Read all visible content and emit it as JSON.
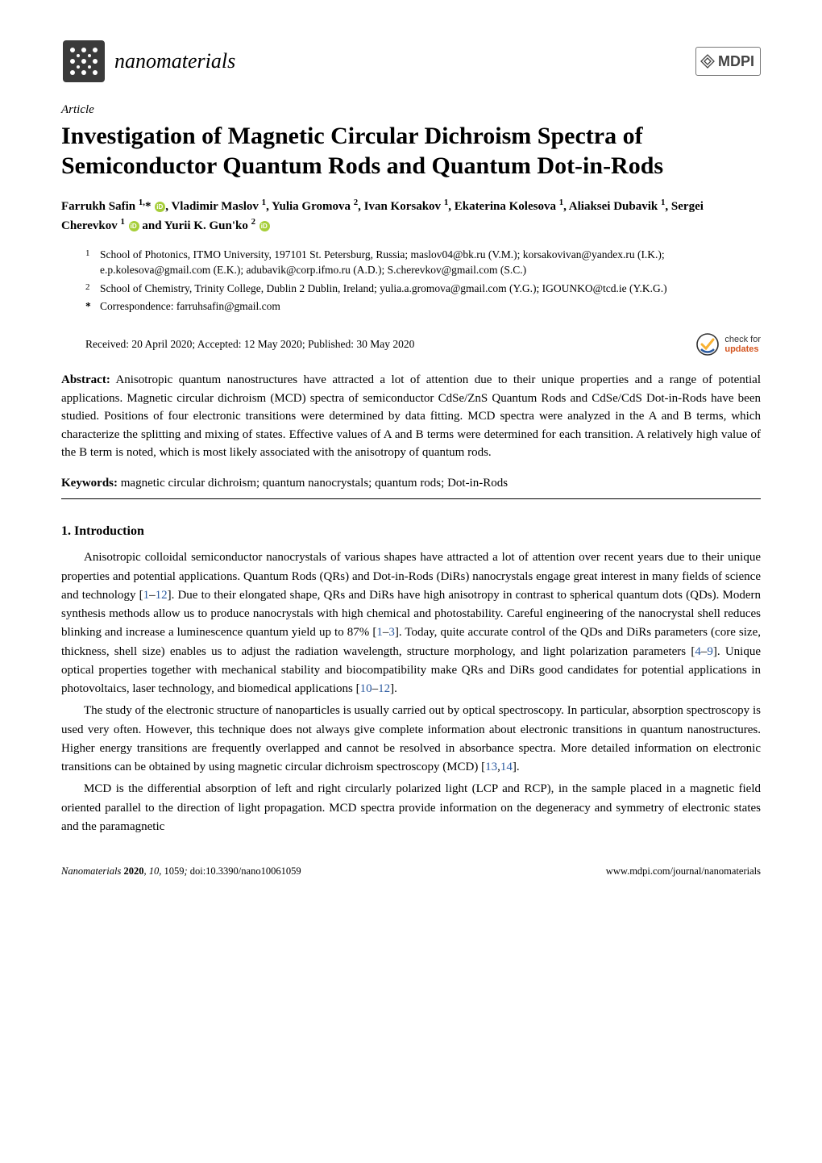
{
  "journal": {
    "name": "nanomaterials",
    "publisher": "MDPI",
    "logo_bg": "#3a3a3a",
    "logo_pattern": "#ffffff"
  },
  "article": {
    "type_label": "Article",
    "title": "Investigation of Magnetic Circular Dichroism Spectra of Semiconductor Quantum Rods and Quantum Dot-in-Rods",
    "authors_html": "Farrukh Safin <sup>1,</sup>* <span class='orcid-icon'></span>, Vladimir Maslov <sup>1</sup>, Yulia Gromova <sup>2</sup>, Ivan Korsakov <sup>1</sup>, Ekaterina Kolesova <sup>1</sup>, Aliaksei Dubavik <sup>1</sup>, Sergei Cherevkov <sup>1</sup> <span class='orcid-icon'></span> and Yurii K. Gun'ko <sup>2</sup> <span class='orcid-icon'></span>",
    "affiliations": [
      {
        "num": "1",
        "text": "School of Photonics, ITMO University, 197101 St. Petersburg, Russia; maslov04@bk.ru (V.M.); korsakovivan@yandex.ru (I.K.); e.p.kolesova@gmail.com (E.K.); adubavik@corp.ifmo.ru (A.D.); S.cherevkov@gmail.com (S.C.)"
      },
      {
        "num": "2",
        "text": "School of Chemistry, Trinity College, Dublin 2 Dublin, Ireland; yulia.a.gromova@gmail.com (Y.G.); IGOUNKO@tcd.ie (Y.K.G.)"
      }
    ],
    "correspondence_label": "Correspondence:",
    "correspondence": "farruhsafin@gmail.com",
    "dates": "Received: 20 April 2020; Accepted: 12 May 2020; Published: 30 May 2020",
    "updates_check": "check for",
    "updates_word": "updates",
    "abstract_label": "Abstract:",
    "abstract": "Anisotropic quantum nanostructures have attracted a lot of attention due to their unique properties and a range of potential applications. Magnetic circular dichroism (MCD) spectra of semiconductor CdSe/ZnS Quantum Rods and CdSe/CdS Dot-in-Rods have been studied. Positions of four electronic transitions were determined by data fitting. MCD spectra were analyzed in the A and B terms, which characterize the splitting and mixing of states. Effective values of A and B terms were determined for each transition. A relatively high value of the B term is noted, which is most likely associated with the anisotropy of quantum rods.",
    "keywords_label": "Keywords:",
    "keywords": "magnetic circular dichroism; quantum nanocrystals; quantum rods; Dot-in-Rods"
  },
  "section": {
    "heading": "1. Introduction",
    "paragraphs": [
      "Anisotropic colloidal semiconductor nanocrystals of various shapes have attracted a lot of attention over recent years due to their unique properties and potential applications. Quantum Rods (QRs) and Dot-in-Rods (DiRs) nanocrystals engage great interest in many fields of science and technology [<span class='ref-link'>1</span>–<span class='ref-link'>12</span>]. Due to their elongated shape, QRs and DiRs have high anisotropy in contrast to spherical quantum dots (QDs). Modern synthesis methods allow us to produce nanocrystals with high chemical and photostability. Careful engineering of the nanocrystal shell reduces blinking and increase a luminescence quantum yield up to 87% [<span class='ref-link'>1</span>–<span class='ref-link'>3</span>]. Today, quite accurate control of the QDs and DiRs parameters (core size, thickness, shell size) enables us to adjust the radiation wavelength, structure morphology, and light polarization parameters [<span class='ref-link'>4</span>–<span class='ref-link'>9</span>]. Unique optical properties together with mechanical stability and biocompatibility make QRs and DiRs good candidates for potential applications in photovoltaics, laser technology, and biomedical applications [<span class='ref-link'>10</span>–<span class='ref-link'>12</span>].",
      "The study of the electronic structure of nanoparticles is usually carried out by optical spectroscopy. In particular, absorption spectroscopy is used very often. However, this technique does not always give complete information about electronic transitions in quantum nanostructures. Higher energy transitions are frequently overlapped and cannot be resolved in absorbance spectra. More detailed information on electronic transitions can be obtained by using magnetic circular dichroism spectroscopy (MCD) [<span class='ref-link'>13</span>,<span class='ref-link'>14</span>].",
      "MCD is the differential absorption of left and right circularly polarized light (LCP and RCP), in the sample placed in a magnetic field oriented parallel to the direction of light propagation. MCD spectra provide information on the degeneracy and symmetry of electronic states and the paramagnetic"
    ]
  },
  "footer": {
    "left_journal": "Nanomaterials",
    "left_year": "2020",
    "left_vol": "10",
    "left_page": "1059",
    "left_doi": "doi:10.3390/nano10061059",
    "right": "www.mdpi.com/journal/nanomaterials"
  },
  "colors": {
    "ref_link": "#2b5aa0",
    "orcid": "#a6ce39",
    "accent": "#d4541e"
  }
}
